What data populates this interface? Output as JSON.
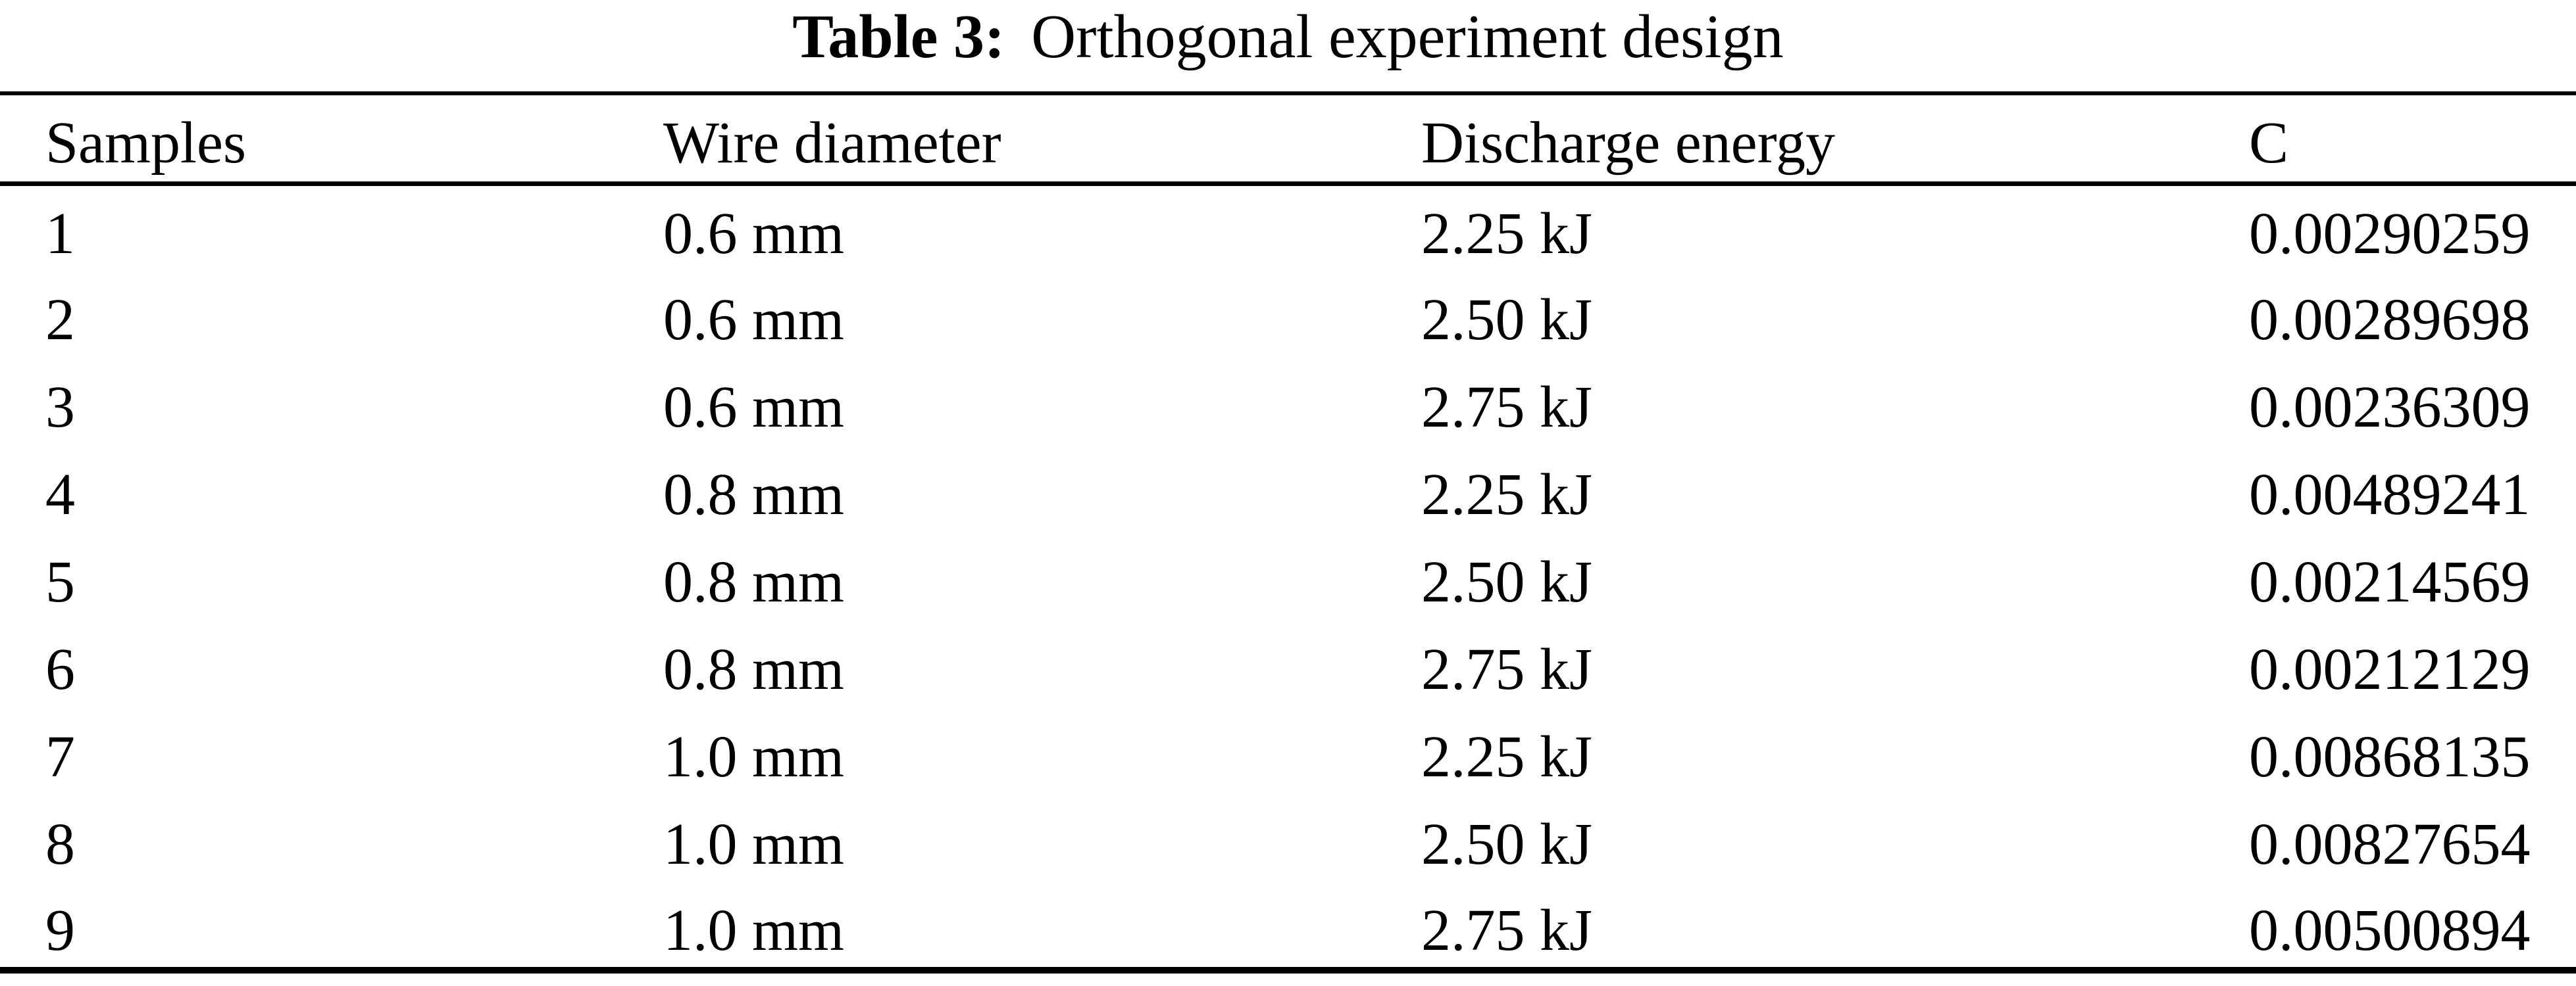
{
  "caption": {
    "label": "Table 3:",
    "text": "Orthogonal experiment design"
  },
  "table": {
    "columns": [
      "Samples",
      "Wire diameter",
      "Discharge energy",
      "C"
    ],
    "rows": [
      [
        "1",
        "0.6 mm",
        "2.25 kJ",
        "0.00290259"
      ],
      [
        "2",
        "0.6 mm",
        "2.50 kJ",
        "0.00289698"
      ],
      [
        "3",
        "0.6 mm",
        "2.75 kJ",
        "0.00236309"
      ],
      [
        "4",
        "0.8 mm",
        "2.25 kJ",
        "0.00489241"
      ],
      [
        "5",
        "0.8 mm",
        "2.50 kJ",
        "0.00214569"
      ],
      [
        "6",
        "0.8 mm",
        "2.75 kJ",
        "0.00212129"
      ],
      [
        "7",
        "1.0 mm",
        "2.25 kJ",
        "0.00868135"
      ],
      [
        "8",
        "1.0 mm",
        "2.50 kJ",
        "0.00827654"
      ],
      [
        "9",
        "1.0 mm",
        "2.75 kJ",
        "0.00500894"
      ]
    ]
  },
  "colors": {
    "text": "#000000",
    "background": "#ffffff",
    "rule": "#000000"
  }
}
